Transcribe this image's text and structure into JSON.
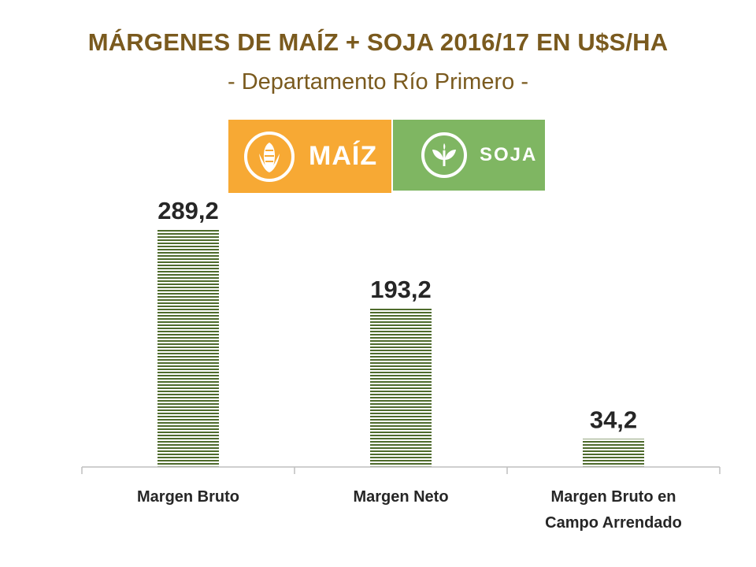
{
  "header": {
    "title": "MÁRGENES DE MAÍZ + SOJA 2016/17 EN U$S/HA",
    "subtitle": "- Departamento Río Primero -"
  },
  "logos": {
    "maiz": {
      "label": "MAÍZ",
      "icon": "corn-icon",
      "color": "#f7a934"
    },
    "soja": {
      "label": "SOJA",
      "icon": "sprout-icon",
      "color": "#7fb662"
    }
  },
  "colors": {
    "title": "#7a5a1e",
    "bar_stripe_dark": "#4e6b2c",
    "bar_stripe_light": "#ffffff"
  },
  "chart_data": {
    "type": "bar",
    "title": "MÁRGENES DE MAÍZ + SOJA 2016/17 EN U$S/HA",
    "subtitle": "- Departamento Río Primero -",
    "categories": [
      [
        "Margen Bruto"
      ],
      [
        "Margen Neto"
      ],
      [
        "Margen Bruto en",
        "Campo Arrendado"
      ]
    ],
    "values": [
      289.2,
      193.2,
      34.2
    ],
    "value_labels": [
      "289,2",
      "193,2",
      "34,2"
    ],
    "ylim": [
      0,
      300
    ],
    "grid": false,
    "legend": "none"
  }
}
